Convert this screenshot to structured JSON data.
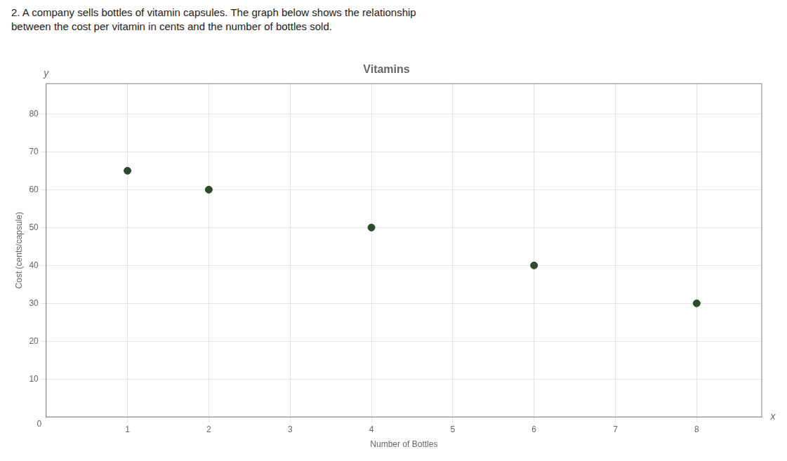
{
  "chart_data": {
    "type": "scatter",
    "title": "Vitamins",
    "subtitle": [
      "2. A company sells bottles of vitamin capsules.  The graph below shows the relationship",
      "between the cost per vitamin in cents and the number of bottles sold."
    ],
    "xlabel": "Number of Bottles",
    "ylabel": "Cost (cents/capsule)",
    "annotations": [
      "x",
      "y",
      "0"
    ],
    "x": [
      1,
      2,
      4,
      6,
      8
    ],
    "values": [
      65,
      60,
      50,
      40,
      30
    ],
    "color": "#2d4a2d",
    "xlim": [
      0,
      8.8
    ],
    "ylim": [
      0,
      88
    ],
    "xticks": [
      1,
      2,
      3,
      4,
      5,
      6,
      7,
      8
    ],
    "yticks": [
      10,
      20,
      30,
      40,
      50,
      60,
      70,
      80
    ],
    "grid": true
  }
}
